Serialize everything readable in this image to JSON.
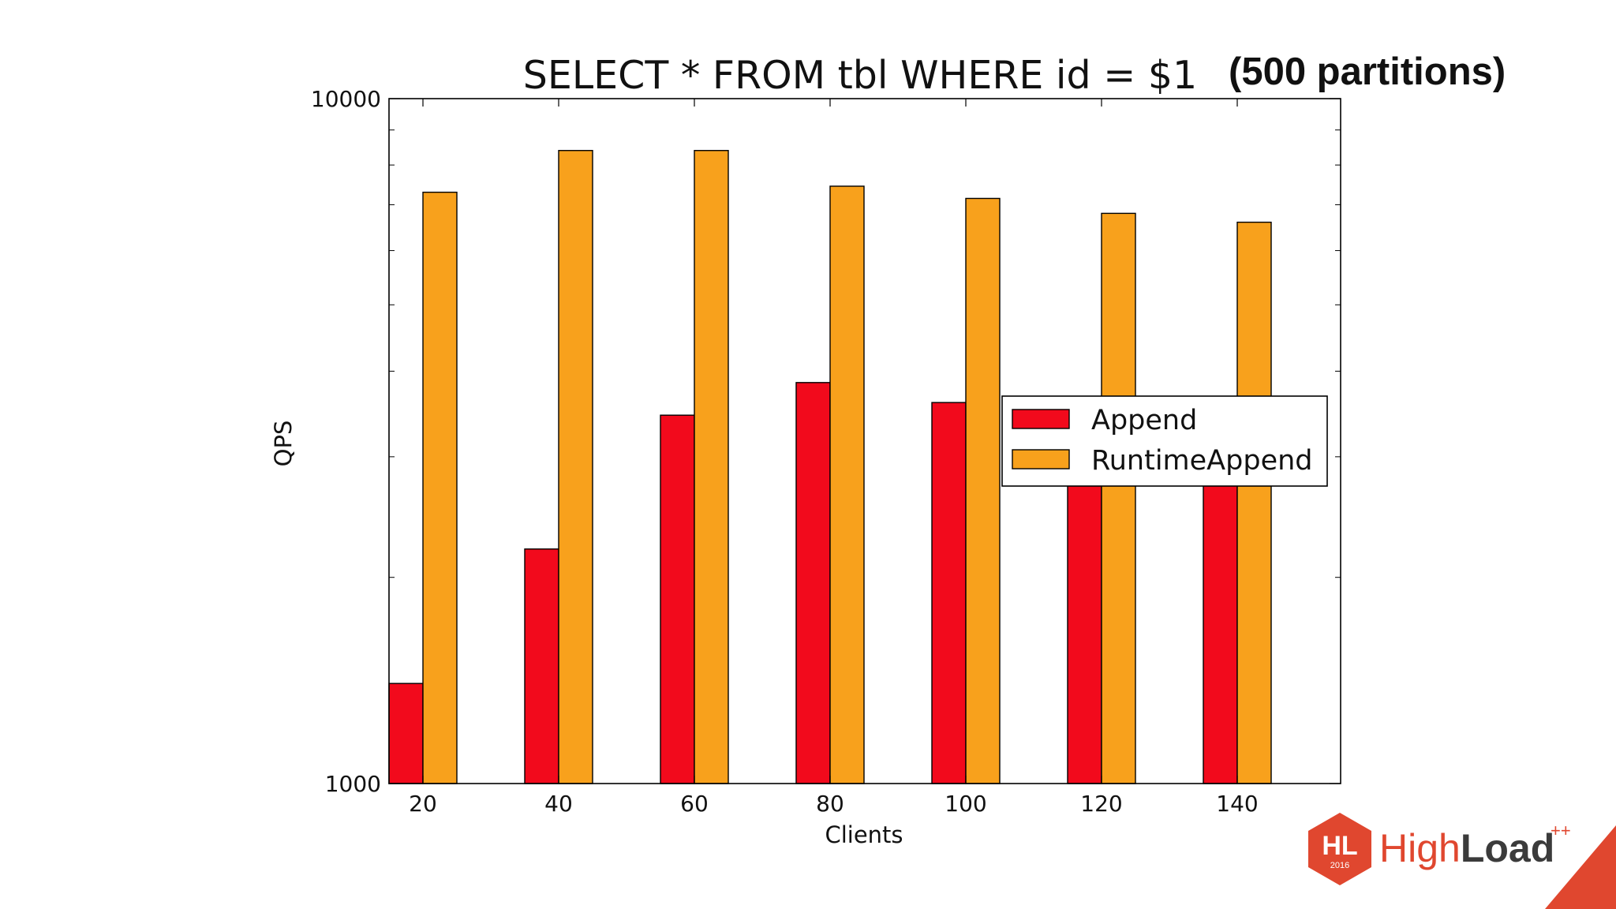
{
  "chart_data": {
    "type": "bar",
    "title": "SELECT * FROM tbl WHERE id = $1",
    "subtitle": "(500 partitions)",
    "xlabel": "Clients",
    "ylabel": "QPS",
    "categories": [
      "20",
      "40",
      "60",
      "80",
      "100",
      "120",
      "140"
    ],
    "yscale": "log",
    "ylim": [
      1000,
      10000
    ],
    "yticks": [
      1000,
      10000
    ],
    "ytick_labels": [
      "1000",
      "10000"
    ],
    "yminor_ticks": [
      2000,
      3000,
      4000,
      5000,
      6000,
      7000,
      8000,
      9000
    ],
    "series": [
      {
        "name": "Append",
        "color": "#f20a1c",
        "values": [
          1400,
          2200,
          3450,
          3850,
          3600,
          3100,
          2800
        ]
      },
      {
        "name": "RuntimeAppend",
        "color": "#f8a11c",
        "values": [
          7300,
          8400,
          8400,
          7450,
          7150,
          6800,
          6600
        ]
      }
    ],
    "legend": {
      "position": "center-right",
      "entries": [
        "Append",
        "RuntimeAppend"
      ]
    },
    "grid": false
  },
  "branding": {
    "logo_badge": "HL",
    "logo_year": "2016",
    "brand_light": "High",
    "brand_bold": "Load",
    "brand_sup": "++",
    "brand_color": "#e0472f"
  }
}
